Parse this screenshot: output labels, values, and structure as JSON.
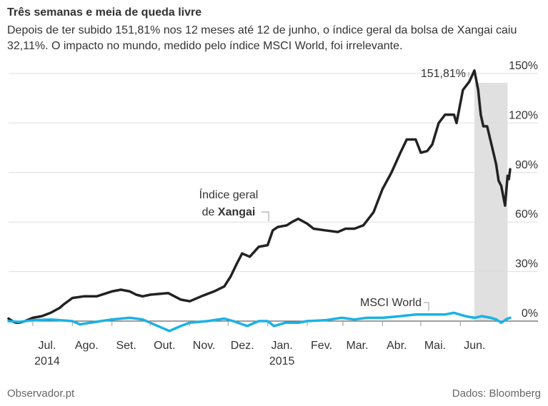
{
  "title": "Três semanas e meia de queda livre",
  "subtitle": "Depois de ter subido 151,81% nos 12 meses até 12 de junho, o índice geral da bolsa de Xangai caiu 32,11%. O impacto no mundo, medido pelo índice MSCI World, foi irrelevante.",
  "source_left": "Observador.pt",
  "source_right": "Dados: Bloomberg",
  "colors": {
    "xangai": "#222222",
    "msci": "#1ab2e6",
    "shade": "#e0e0e0",
    "grid": "#dddddd"
  },
  "chart_data": {
    "type": "line",
    "ylabel": "",
    "xlabel": "",
    "ylim": [
      -10,
      155
    ],
    "y_ticks": [
      0,
      30,
      60,
      90,
      120,
      150
    ],
    "y_tick_labels": [
      "0%",
      "30%",
      "60%",
      "90%",
      "120%",
      "150%"
    ],
    "x_ticks": [
      "2014-07-01",
      "2014-08-01",
      "2014-09-01",
      "2014-10-01",
      "2014-11-01",
      "2014-12-01",
      "2015-01-01",
      "2015-02-01",
      "2015-03-01",
      "2015-04-01",
      "2015-05-01",
      "2015-06-01"
    ],
    "x_tick_labels": [
      "Jul.",
      "Ago.",
      "Set.",
      "Out.",
      "Nov.",
      "Dez.",
      "Jan.",
      "Fev.",
      "Mar.",
      "Abr.",
      "Mai.",
      "Jun."
    ],
    "year_labels": [
      {
        "date": "2014-07-01",
        "label": "2014"
      },
      {
        "date": "2015-01-01",
        "label": "2015"
      }
    ],
    "shaded_period": [
      "2015-06-12",
      "2015-07-08"
    ],
    "annotations": {
      "peak_label": "151,81%",
      "xangai_label_line1": "Índice geral",
      "xangai_label_line2_prefix": "de ",
      "xangai_label_line2_bold": "Xangai",
      "msci_label": "MSCI World"
    },
    "series": [
      {
        "name": "Índice geral de Xangai",
        "x": [
          "2014-06-12",
          "2014-06-16",
          "2014-06-18",
          "2014-06-20",
          "2014-06-25",
          "2014-07-01",
          "2014-07-08",
          "2014-07-15",
          "2014-07-22",
          "2014-07-25",
          "2014-08-01",
          "2014-08-10",
          "2014-08-20",
          "2014-09-01",
          "2014-09-08",
          "2014-09-15",
          "2014-09-20",
          "2014-09-25",
          "2014-10-01",
          "2014-10-15",
          "2014-10-25",
          "2014-11-01",
          "2014-11-10",
          "2014-11-20",
          "2014-11-28",
          "2014-12-03",
          "2014-12-08",
          "2014-12-12",
          "2014-12-18",
          "2014-12-25",
          "2015-01-01",
          "2015-01-05",
          "2015-01-09",
          "2015-01-16",
          "2015-01-20",
          "2015-01-25",
          "2015-02-01",
          "2015-02-06",
          "2015-02-15",
          "2015-02-25",
          "2015-03-03",
          "2015-03-10",
          "2015-03-17",
          "2015-03-25",
          "2015-04-01",
          "2015-04-08",
          "2015-04-15",
          "2015-04-20",
          "2015-04-27",
          "2015-05-01",
          "2015-05-06",
          "2015-05-10",
          "2015-05-15",
          "2015-05-20",
          "2015-05-27",
          "2015-05-29",
          "2015-06-03",
          "2015-06-08",
          "2015-06-12",
          "2015-06-15",
          "2015-06-17",
          "2015-06-19",
          "2015-06-22",
          "2015-06-26",
          "2015-06-29",
          "2015-07-01",
          "2015-07-03",
          "2015-07-06",
          "2015-07-08",
          "2015-07-09",
          "2015-07-10"
        ],
        "values": [
          1.5,
          -0.5,
          -1,
          -1,
          0,
          2,
          3,
          5,
          8,
          10,
          14,
          15,
          15,
          18,
          19,
          18,
          16,
          15,
          16,
          17,
          13,
          12,
          15,
          18,
          21,
          27,
          35,
          41,
          39,
          45,
          46,
          55,
          57,
          58,
          60,
          62,
          59,
          56,
          55,
          54,
          56,
          56,
          58,
          66,
          80,
          90,
          102,
          110,
          110,
          102,
          103,
          107,
          120,
          125,
          125,
          120,
          140,
          145,
          151.81,
          140,
          125,
          118,
          118,
          105,
          95,
          85,
          82,
          70,
          88,
          86,
          92
        ]
      },
      {
        "name": "MSCI World",
        "x": [
          "2014-06-12",
          "2014-06-20",
          "2014-07-01",
          "2014-07-15",
          "2014-08-01",
          "2014-08-07",
          "2014-08-15",
          "2014-09-01",
          "2014-09-15",
          "2014-09-25",
          "2014-10-01",
          "2014-10-10",
          "2014-10-16",
          "2014-10-25",
          "2014-11-01",
          "2014-11-15",
          "2014-11-28",
          "2014-12-05",
          "2014-12-16",
          "2014-12-25",
          "2015-01-01",
          "2015-01-06",
          "2015-01-15",
          "2015-01-25",
          "2015-02-01",
          "2015-02-15",
          "2015-02-28",
          "2015-03-10",
          "2015-03-20",
          "2015-04-01",
          "2015-04-15",
          "2015-04-27",
          "2015-05-10",
          "2015-05-20",
          "2015-05-27",
          "2015-06-05",
          "2015-06-12",
          "2015-06-18",
          "2015-06-25",
          "2015-06-29",
          "2015-07-03",
          "2015-07-08",
          "2015-07-10"
        ],
        "values": [
          0,
          -0.5,
          0.5,
          1,
          0,
          -2,
          -1,
          1,
          2,
          1,
          -1,
          -4,
          -6,
          -3,
          -1,
          0,
          1.5,
          0,
          -3,
          0,
          0,
          -3,
          -1,
          -1,
          0,
          0.5,
          2,
          1,
          2,
          2,
          3,
          4,
          4,
          4,
          5,
          3,
          2,
          3,
          2,
          1,
          -1,
          1.5,
          2
        ]
      }
    ]
  }
}
